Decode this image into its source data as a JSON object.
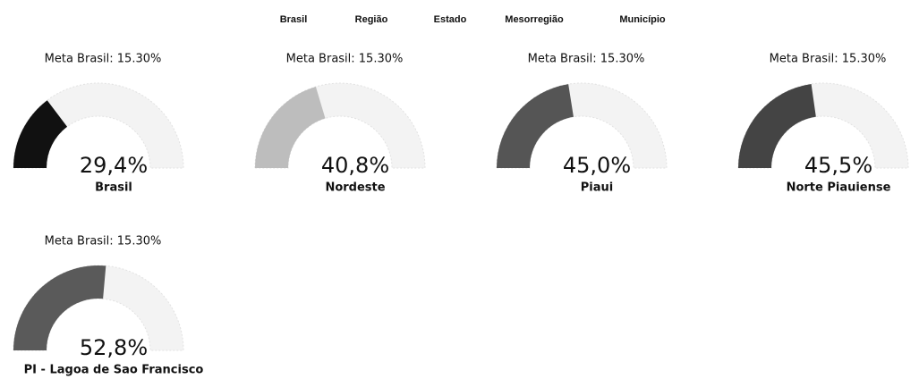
{
  "nav": [
    "Brasil",
    "Região",
    "Estado",
    "Mesorregião",
    "Município"
  ],
  "chart_data": [
    {
      "type": "gauge",
      "title": "Meta Brasil: 15.30%",
      "categories": [
        "Brasil"
      ],
      "values": [
        29.4
      ],
      "value_labels": [
        "29,4%"
      ],
      "color": "#111111",
      "ylim": [
        0,
        100
      ]
    },
    {
      "type": "gauge",
      "title": "Meta Brasil: 15.30%",
      "categories": [
        "Nordeste"
      ],
      "values": [
        40.8
      ],
      "value_labels": [
        "40,8%"
      ],
      "color": "#bdbdbd",
      "ylim": [
        0,
        100
      ]
    },
    {
      "type": "gauge",
      "title": "Meta Brasil: 15.30%",
      "categories": [
        "Piaui"
      ],
      "values": [
        45.0
      ],
      "value_labels": [
        "45,0%"
      ],
      "color": "#555555",
      "ylim": [
        0,
        100
      ]
    },
    {
      "type": "gauge",
      "title": "Meta Brasil: 15.30%",
      "categories": [
        "Norte Piauiense"
      ],
      "values": [
        45.5
      ],
      "value_labels": [
        "45,5%"
      ],
      "color": "#444444",
      "ylim": [
        0,
        100
      ]
    },
    {
      "type": "gauge",
      "title": "Meta Brasil: 15.30%",
      "categories": [
        "PI - Lagoa de Sao Francisco"
      ],
      "values": [
        52.8
      ],
      "value_labels": [
        "52,8%"
      ],
      "color": "#5a5a5a",
      "ylim": [
        0,
        100
      ]
    }
  ]
}
